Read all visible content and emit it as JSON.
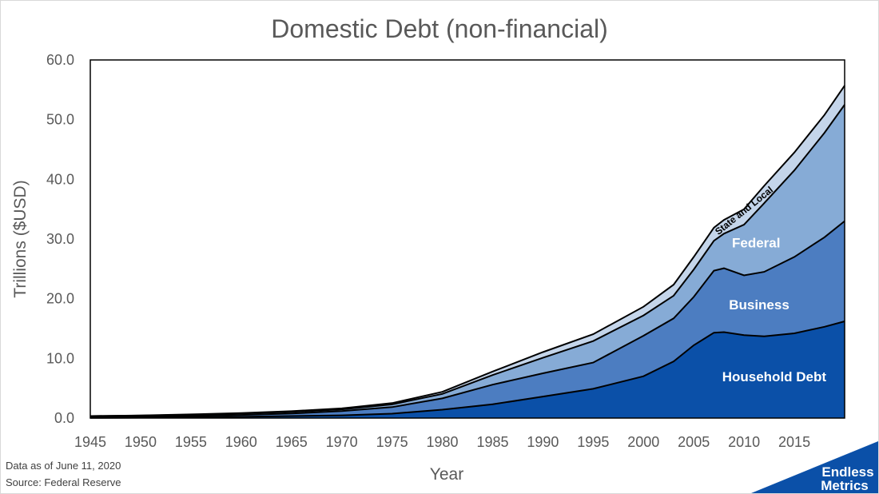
{
  "chart_data": {
    "type": "area",
    "stacked": true,
    "title": "Domestic Debt (non-financial)",
    "xlabel": "Year",
    "ylabel": "Trillions ($USD)",
    "xlim": [
      1945,
      2020
    ],
    "ylim": [
      0,
      60
    ],
    "yticks": [
      "0.0",
      "10.0",
      "20.0",
      "30.0",
      "40.0",
      "50.0",
      "60.0"
    ],
    "xticks": [
      "1945",
      "1950",
      "1955",
      "1960",
      "1965",
      "1970",
      "1975",
      "1980",
      "1985",
      "1990",
      "1995",
      "2000",
      "2005",
      "2010",
      "2015"
    ],
    "grid": false,
    "legend": "none (series labeled directly on areas)",
    "x": [
      1945,
      1950,
      1955,
      1960,
      1965,
      1970,
      1975,
      1980,
      1985,
      1990,
      1995,
      2000,
      2003,
      2005,
      2007,
      2008,
      2010,
      2012,
      2015,
      2018,
      2020
    ],
    "series": [
      {
        "name": "Household Debt",
        "color": "#0b50a8",
        "values": [
          0.03,
          0.07,
          0.13,
          0.22,
          0.34,
          0.46,
          0.73,
          1.4,
          2.3,
          3.6,
          4.9,
          7.0,
          9.5,
          12.2,
          14.3,
          14.4,
          13.9,
          13.7,
          14.2,
          15.3,
          16.2
        ]
      },
      {
        "name": "Business",
        "color": "#4c7dc1",
        "values": [
          0.09,
          0.14,
          0.2,
          0.3,
          0.43,
          0.7,
          1.1,
          1.9,
          3.3,
          3.9,
          4.4,
          6.8,
          7.2,
          8.1,
          10.4,
          10.7,
          10.0,
          10.8,
          12.8,
          15.0,
          16.8
        ]
      },
      {
        "name": "Federal",
        "color": "#86abd6",
        "values": [
          0.21,
          0.2,
          0.22,
          0.24,
          0.26,
          0.3,
          0.46,
          0.74,
          1.6,
          2.6,
          3.6,
          3.4,
          3.8,
          4.6,
          5.0,
          5.8,
          8.5,
          11.5,
          14.5,
          17.5,
          19.5
        ]
      },
      {
        "name": "State and Local",
        "color": "#c4d5ea",
        "values": [
          0.01,
          0.03,
          0.06,
          0.09,
          0.12,
          0.16,
          0.22,
          0.35,
          0.6,
          0.95,
          1.15,
          1.45,
          1.85,
          2.1,
          2.2,
          2.3,
          2.6,
          2.9,
          3.0,
          3.0,
          3.2
        ]
      }
    ],
    "annotations": [
      "Household Debt",
      "Business",
      "Federal",
      "State and Local"
    ]
  },
  "footnotes": {
    "line1": "Data as of June 11, 2020",
    "line2": "Source: Federal Reserve"
  },
  "logo": {
    "line1": "Endless",
    "line2": "Metrics",
    "color": "#0b50a8"
  }
}
